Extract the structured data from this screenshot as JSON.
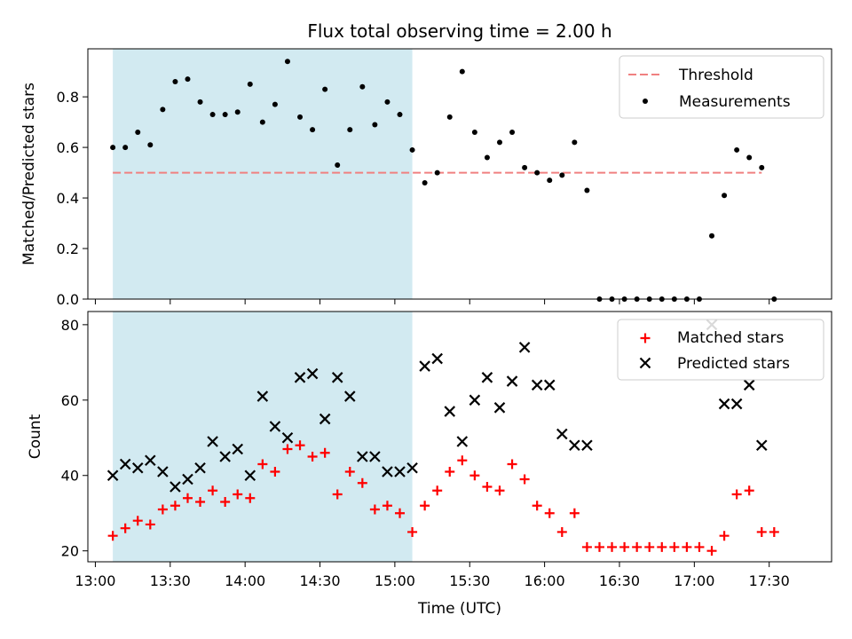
{
  "colors": {
    "shade": "#add8e6",
    "threshold": "#f08080",
    "matched": "#ff0000",
    "predicted": "#000000",
    "measurement": "#000000"
  },
  "chart_data": [
    {
      "type": "scatter",
      "title": "Flux total observing time = 2.00 h",
      "xlabel": "",
      "ylabel": "Matched/Predicted stars",
      "ylim": [
        0,
        0.99
      ],
      "yticks": [
        "0.0",
        "0.2",
        "0.4",
        "0.6",
        "0.8"
      ],
      "ytick_values": [
        0,
        0.2,
        0.4,
        0.6,
        0.8
      ],
      "xlim": [
        "12:57",
        "17:55"
      ],
      "shaded_region": [
        "13:07",
        "15:07"
      ],
      "legend": {
        "placement": "upper right",
        "entries": [
          "Threshold",
          "Measurements"
        ]
      },
      "series": [
        {
          "name": "Threshold",
          "kind": "line",
          "x": [
            "13:07",
            "17:27"
          ],
          "y": [
            0.5,
            0.5
          ]
        },
        {
          "name": "Measurements",
          "kind": "points",
          "x": [
            "13:07",
            "13:12",
            "13:17",
            "13:22",
            "13:27",
            "13:32",
            "13:37",
            "13:42",
            "13:47",
            "13:52",
            "13:57",
            "14:02",
            "14:07",
            "14:12",
            "14:17",
            "14:22",
            "14:27",
            "14:32",
            "14:37",
            "14:42",
            "14:47",
            "14:52",
            "14:57",
            "15:02",
            "15:07",
            "15:12",
            "15:17",
            "15:22",
            "15:27",
            "15:32",
            "15:37",
            "15:42",
            "15:47",
            "15:52",
            "15:57",
            "16:02",
            "16:07",
            "16:12",
            "16:17",
            "16:22",
            "16:27",
            "16:32",
            "16:37",
            "16:42",
            "16:47",
            "16:52",
            "16:57",
            "17:02",
            "17:07",
            "17:12",
            "17:17",
            "17:22",
            "17:27",
            "17:32"
          ],
          "y": [
            0.6,
            0.6,
            0.66,
            0.61,
            0.75,
            0.86,
            0.87,
            0.78,
            0.73,
            0.73,
            0.74,
            0.85,
            0.7,
            0.77,
            0.94,
            0.72,
            0.67,
            0.83,
            0.53,
            0.67,
            0.84,
            0.69,
            0.78,
            0.73,
            0.59,
            0.46,
            0.5,
            0.72,
            0.9,
            0.66,
            0.56,
            0.62,
            0.66,
            0.52,
            0.5,
            0.47,
            0.49,
            0.62,
            0.43,
            0,
            0,
            0,
            0,
            0,
            0,
            0,
            0,
            0,
            0.25,
            0.41,
            0.59,
            0.56,
            0.52,
            0
          ]
        }
      ]
    },
    {
      "type": "scatter",
      "title": "",
      "xlabel": "Time (UTC)",
      "ylabel": "Count",
      "ylim": [
        17.1,
        83.5
      ],
      "yticks": [
        "20",
        "40",
        "60",
        "80"
      ],
      "ytick_values": [
        20,
        40,
        60,
        80
      ],
      "xlim": [
        "12:57",
        "17:55"
      ],
      "xticks": [
        "13:00",
        "13:30",
        "14:00",
        "14:30",
        "15:00",
        "15:30",
        "16:00",
        "16:30",
        "17:00",
        "17:30"
      ],
      "shaded_region": [
        "13:07",
        "15:07"
      ],
      "legend": {
        "placement": "upper right",
        "entries": [
          "Matched stars",
          "Predicted stars"
        ]
      },
      "series": [
        {
          "name": "Matched stars",
          "marker": "plus",
          "x": [
            "13:07",
            "13:12",
            "13:17",
            "13:22",
            "13:27",
            "13:32",
            "13:37",
            "13:42",
            "13:47",
            "13:52",
            "13:57",
            "14:02",
            "14:07",
            "14:12",
            "14:17",
            "14:22",
            "14:27",
            "14:32",
            "14:37",
            "14:42",
            "14:47",
            "14:52",
            "14:57",
            "15:02",
            "15:07",
            "15:12",
            "15:17",
            "15:22",
            "15:27",
            "15:32",
            "15:37",
            "15:42",
            "15:47",
            "15:52",
            "15:57",
            "16:02",
            "16:07",
            "16:12",
            "16:17",
            "16:22",
            "16:27",
            "16:32",
            "16:37",
            "16:42",
            "16:47",
            "16:52",
            "16:57",
            "17:02",
            "17:07",
            "17:12",
            "17:17",
            "17:22",
            "17:27",
            "17:32"
          ],
          "y": [
            24,
            26,
            28,
            27,
            31,
            32,
            34,
            33,
            36,
            33,
            35,
            34,
            43,
            41,
            47,
            48,
            45,
            46,
            35,
            41,
            38,
            31,
            32,
            30,
            25,
            32,
            36,
            41,
            44,
            40,
            37,
            36,
            43,
            39,
            32,
            30,
            25,
            30,
            21,
            21,
            21,
            21,
            21,
            21,
            21,
            21,
            21,
            21,
            20,
            24,
            35,
            36,
            25,
            25
          ]
        },
        {
          "name": "Predicted stars",
          "marker": "x",
          "x": [
            "13:07",
            "13:12",
            "13:17",
            "13:22",
            "13:27",
            "13:32",
            "13:37",
            "13:42",
            "13:47",
            "13:52",
            "13:57",
            "14:02",
            "14:07",
            "14:12",
            "14:17",
            "14:22",
            "14:27",
            "14:32",
            "14:37",
            "14:42",
            "14:47",
            "14:52",
            "14:57",
            "15:02",
            "15:07",
            "15:12",
            "15:17",
            "15:22",
            "15:27",
            "15:32",
            "15:37",
            "15:42",
            "15:47",
            "15:52",
            "15:57",
            "16:02",
            "16:07",
            "16:12",
            "16:17",
            "17:07",
            "17:12",
            "17:17",
            "17:22",
            "17:27"
          ],
          "y": [
            40,
            43,
            42,
            44,
            41,
            37,
            39,
            42,
            49,
            45,
            47,
            40,
            61,
            53,
            50,
            66,
            67,
            55,
            66,
            61,
            45,
            45,
            41,
            41,
            42,
            69,
            71,
            57,
            49,
            60,
            66,
            58,
            65,
            74,
            64,
            64,
            51,
            48,
            48,
            80,
            59,
            59,
            64,
            48
          ]
        }
      ]
    }
  ]
}
